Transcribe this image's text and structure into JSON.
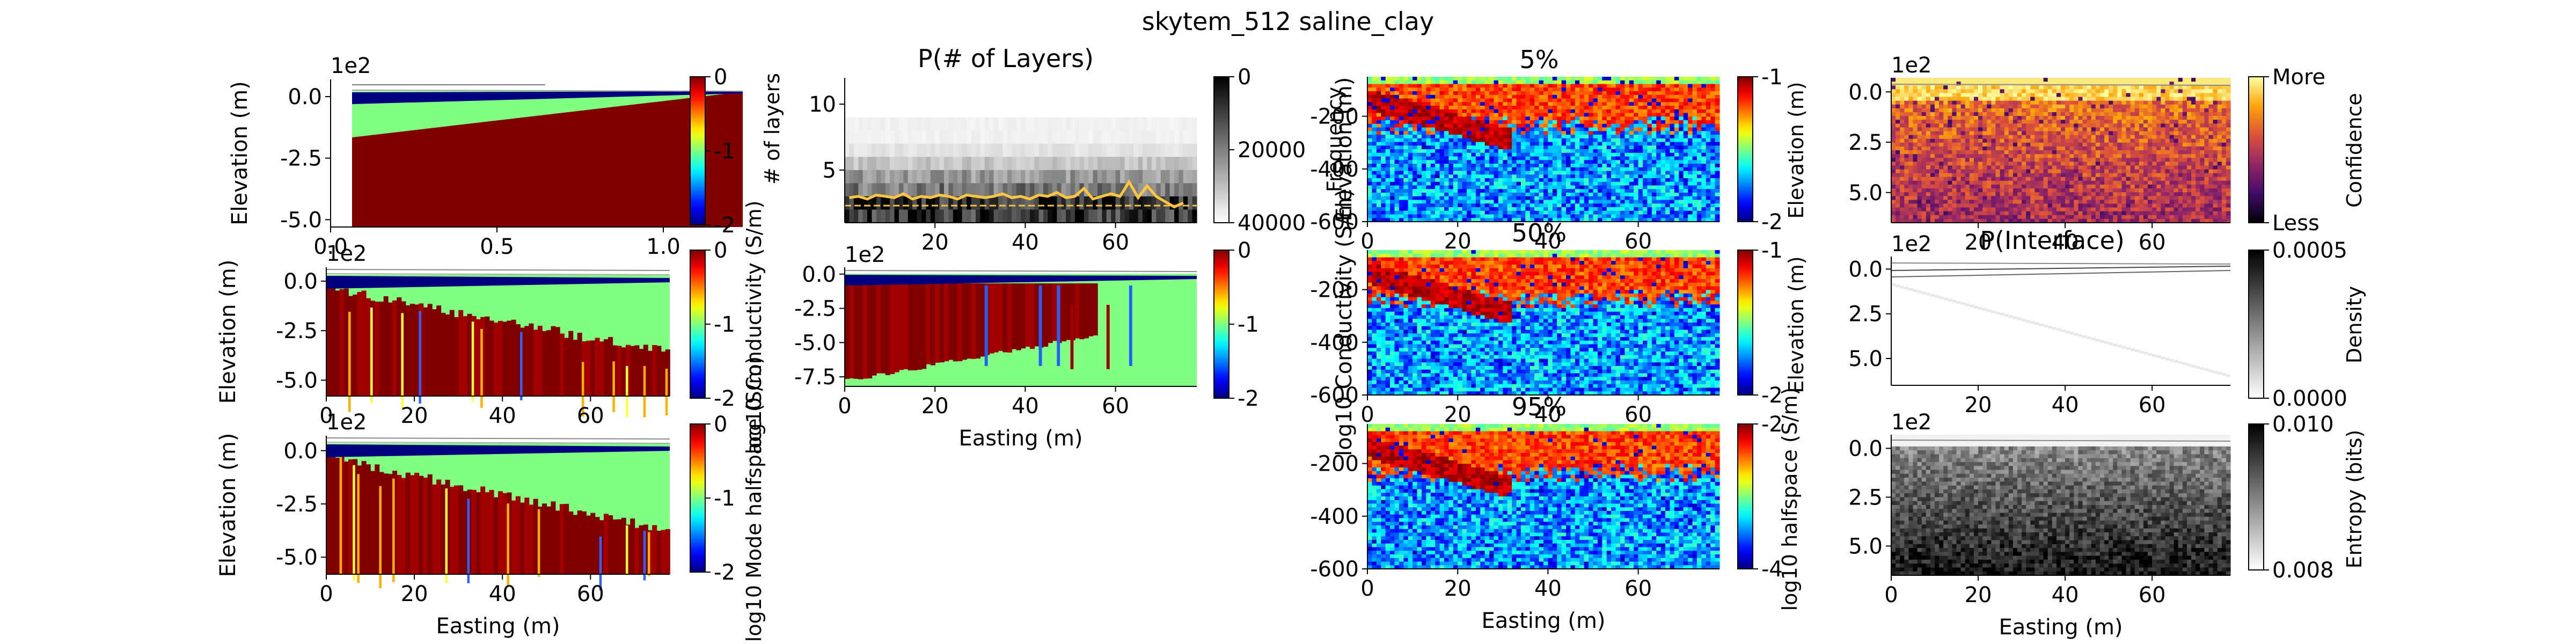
{
  "suptitle": "skytem_512 saline_clay",
  "colors": {
    "jet": [
      "#00007f",
      "#0000ff",
      "#007fff",
      "#00ffff",
      "#7fff7f",
      "#ffff00",
      "#ff7f00",
      "#ff0000",
      "#7f0000"
    ],
    "inferno": [
      "#000004",
      "#420a68",
      "#932667",
      "#dd513a",
      "#fca50a",
      "#fcffa4"
    ],
    "gray": [
      "#000000",
      "#ffffff"
    ],
    "mode_orange": "#ffc640",
    "mode_gold": "#f5c040"
  },
  "chart_data": [
    {
      "panel": "true_model",
      "type": "heatmap",
      "title": "",
      "xlabel": "",
      "ylabel": "Elevation (m)",
      "x_multiplier": "1e2",
      "y_multiplier": "1e2",
      "xlim": [
        0,
        1.2
      ],
      "ylim": [
        -5.3,
        0.7
      ],
      "xticks": [
        "0.0",
        "0.5",
        "1.0"
      ],
      "yticks": [
        "0.0",
        "-2.5",
        "-5.0"
      ],
      "colorbar": {
        "ticks": [
          "0",
          "-1",
          "-2"
        ],
        "range": [
          -2,
          0
        ],
        "label": "log10 Conductivity (S/m)"
      }
    },
    {
      "panel": "best_model",
      "type": "heatmap",
      "xlabel": "",
      "ylabel": "Elevation (m)",
      "y_multiplier": "1e2",
      "xlim": [
        0,
        78
      ],
      "ylim": [
        -5.8,
        0.7
      ],
      "xticks": [
        "0",
        "20",
        "40",
        "60"
      ],
      "yticks": [
        "0.0",
        "-2.5",
        "-5.0"
      ],
      "colorbar": {
        "ticks": [
          "0",
          "-1",
          "-2"
        ],
        "range": [
          -2,
          0
        ],
        "label": "log10 Conductivity (S/m)"
      }
    },
    {
      "panel": "mode_model",
      "type": "heatmap",
      "xlabel": "Easting (m)",
      "ylabel": "Elevation (m)",
      "y_multiplier": "1e2",
      "xlim": [
        0,
        78
      ],
      "ylim": [
        -5.8,
        0.7
      ],
      "xticks": [
        "0",
        "20",
        "40",
        "60"
      ],
      "yticks": [
        "0.0",
        "-2.5",
        "-5.0"
      ],
      "colorbar": {
        "ticks": [
          "0",
          "-1",
          "-2"
        ],
        "range": [
          -2,
          0
        ],
        "label": "log10 Mode halfspace (S/m)"
      }
    },
    {
      "panel": "p_layers",
      "type": "heatmap",
      "title": "P(# of Layers)",
      "ylabel": "# of layers",
      "xlim": [
        0,
        78
      ],
      "ylim": [
        1,
        12
      ],
      "xticks": [
        "20",
        "40",
        "60"
      ],
      "yticks": [
        "5",
        "10"
      ],
      "mode_line": [
        2.9,
        3.0,
        2.8,
        3.1,
        3.0,
        2.9,
        3.2,
        2.8,
        3.0,
        2.9,
        3.1,
        3.0,
        2.8,
        3.1,
        3.0,
        2.9,
        3.0,
        3.2,
        2.9,
        3.0,
        2.8,
        3.1,
        3.0,
        3.3,
        2.9,
        3.0,
        3.6,
        2.8,
        3.0,
        3.2,
        3.0,
        4.1,
        2.9,
        3.8,
        3.0,
        2.6,
        2.2,
        2.5
      ],
      "colorbar": {
        "ticks": [
          "0",
          "20000",
          "40000"
        ],
        "range": [
          0,
          45000
        ],
        "label": "Frequency"
      }
    },
    {
      "panel": "doi_model",
      "type": "heatmap",
      "xlabel": "Easting (m)",
      "y_multiplier": "1e2",
      "xlim": [
        0,
        78
      ],
      "ylim": [
        -8.2,
        0.5
      ],
      "xticks": [
        "0",
        "20",
        "40",
        "60"
      ],
      "yticks": [
        "0.0",
        "-2.5",
        "-5.0",
        "-7.5"
      ],
      "colorbar": {
        "ticks": [
          "0",
          "-1",
          "-2"
        ],
        "range": [
          -2,
          0
        ],
        "label": "log10 Conductivity (S/m)"
      }
    },
    {
      "panel": "p5",
      "type": "heatmap",
      "title": "5%",
      "ylabel": "Elevation (m)",
      "xlim": [
        0,
        78
      ],
      "ylim": [
        -600,
        -50
      ],
      "xticks": [
        "0",
        "20",
        "40",
        "60"
      ],
      "yticks": [
        "-200",
        "-400",
        "-600"
      ],
      "colorbar": {
        "ticks": [
          "-1",
          "-2"
        ],
        "label": "log10 halfspace (S/m)"
      }
    },
    {
      "panel": "p50",
      "type": "heatmap",
      "title": "50%",
      "ylabel": "log10 Conductivity (S/m)",
      "xlim": [
        0,
        78
      ],
      "ylim": [
        -600,
        -50
      ],
      "xticks": [
        "0",
        "20",
        "40",
        "60"
      ],
      "yticks": [
        "-200",
        "-400",
        "-600"
      ],
      "colorbar": {
        "ticks": [
          "-1",
          "-2"
        ],
        "label": "log10 halfspace (S/m)"
      }
    },
    {
      "panel": "p95",
      "type": "heatmap",
      "title": "95%",
      "ylabel": "",
      "xlabel": "Easting (m)",
      "xlim": [
        0,
        78
      ],
      "ylim": [
        -600,
        -50
      ],
      "xticks": [
        "0",
        "20",
        "40",
        "60"
      ],
      "yticks": [
        "-200",
        "-400",
        "-600"
      ],
      "colorbar": {
        "ticks": [
          "-2",
          "-4"
        ],
        "label": "log10 halfspace (S/m)"
      }
    },
    {
      "panel": "confidence",
      "type": "heatmap",
      "ylabel": "Elevation (m)",
      "y_multiplier": "1e2",
      "xlim": [
        0,
        78
      ],
      "ylim": [
        -6.5,
        0.7
      ],
      "xticks": [
        "20",
        "40",
        "60"
      ],
      "yticks": [
        "0.0",
        "2.5",
        "5.0"
      ],
      "colorbar": {
        "ticks": [
          "More",
          "Less"
        ],
        "label": "Confidence"
      }
    },
    {
      "panel": "interface",
      "type": "heatmap",
      "title": "P(Interface)",
      "ylabel": "Elevation (m)",
      "y_multiplier": "1e2",
      "xlim": [
        0,
        78
      ],
      "ylim": [
        -6.5,
        0.7
      ],
      "xticks": [
        "20",
        "40",
        "60"
      ],
      "yticks": [
        "0.0",
        "2.5",
        "5.0"
      ],
      "colorbar": {
        "ticks": [
          "0.0005",
          "0.0000"
        ],
        "range": [
          0,
          0.0009
        ],
        "label": "Density"
      }
    },
    {
      "panel": "entropy",
      "type": "heatmap",
      "ylabel": "",
      "xlabel": "Easting (m)",
      "y_multiplier": "1e2",
      "xlim": [
        0,
        78
      ],
      "ylim": [
        -6.5,
        0.7
      ],
      "xticks": [
        "0",
        "20",
        "40",
        "60"
      ],
      "yticks": [
        "0.0",
        "2.5",
        "5.0"
      ],
      "colorbar": {
        "ticks": [
          "0.010",
          "0.008"
        ],
        "range": [
          0.0075,
          0.0112
        ],
        "label": "Entropy (bits)"
      }
    }
  ]
}
